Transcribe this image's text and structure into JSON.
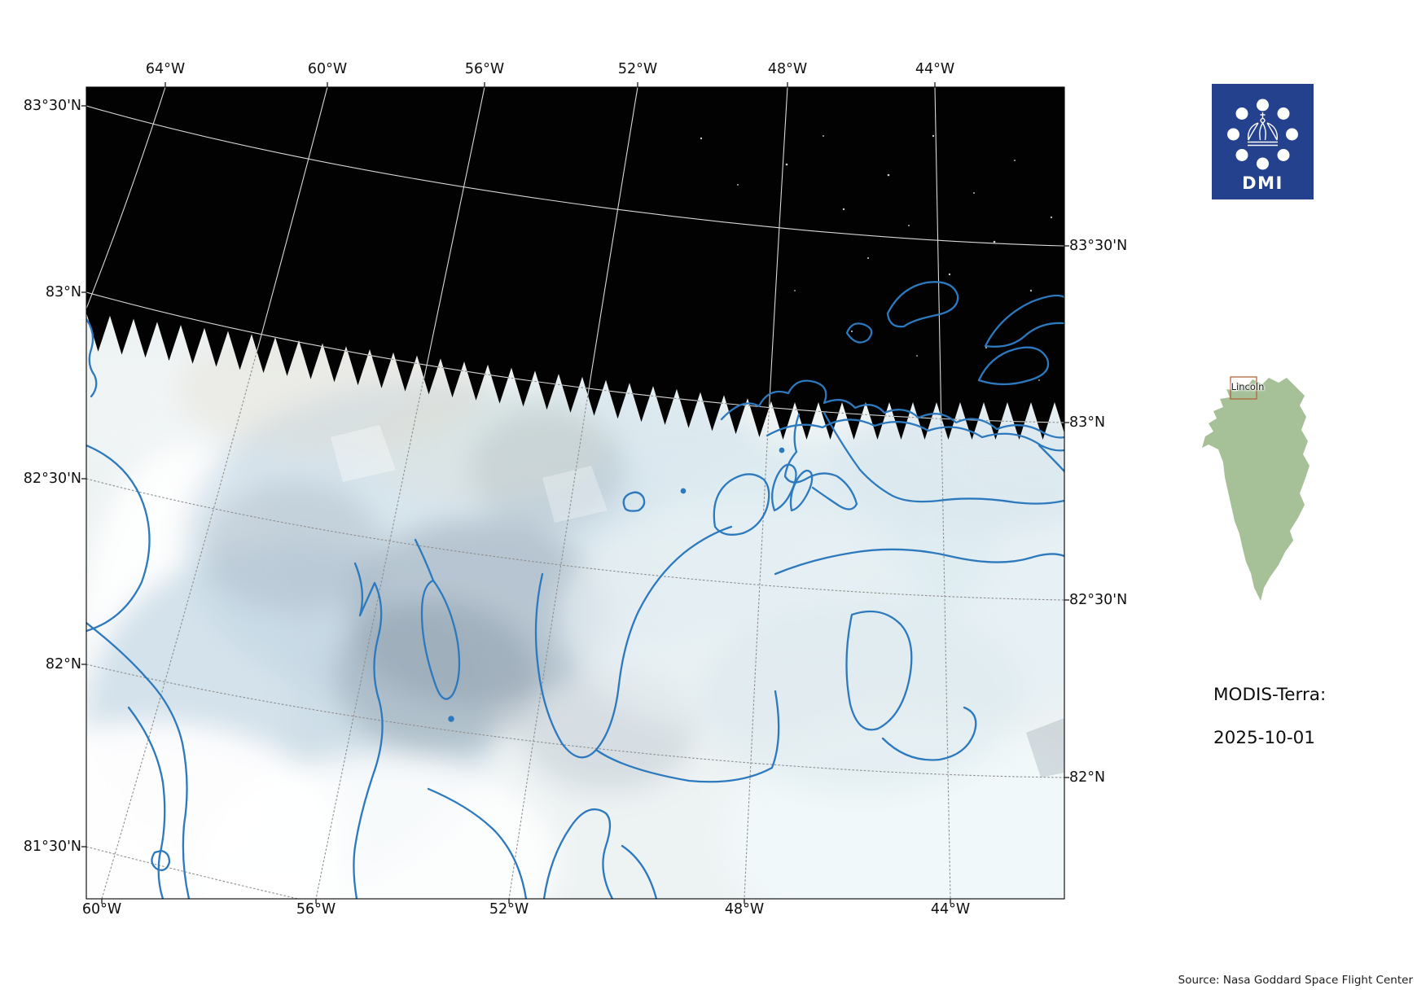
{
  "figure": {
    "top_axis": [
      "64°W",
      "60°W",
      "56°W",
      "52°W",
      "48°W",
      "44°W"
    ],
    "bottom_axis": [
      "60°W",
      "56°W",
      "52°W",
      "48°W",
      "44°W"
    ],
    "left_axis": [
      "83°30'N",
      "83°N",
      "82°30'N",
      "82°N",
      "81°30'N"
    ],
    "right_axis": [
      "83°30'N",
      "83°N",
      "82°30'N",
      "82°N"
    ]
  },
  "logo": {
    "label": "DMI"
  },
  "inset": {
    "region_label": "Lincoln"
  },
  "info": {
    "instrument": "MODIS-Terra:",
    "date": "2025-10-01"
  },
  "footer": {
    "source_text": "Source: Nasa Goddard Space Flight Center"
  },
  "colors": {
    "logo_blue": "#24418e",
    "coastline_blue": "#2d79bd",
    "inset_green": "#a6c098",
    "sky_black": "#020202",
    "grid_gray": "#8e8e8e"
  }
}
